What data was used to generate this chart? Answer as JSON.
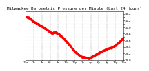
{
  "title": "Milwaukee Barometric Pressure per Minute (Last 24 Hours)",
  "title_fontsize": 4.2,
  "background_color": "#ffffff",
  "plot_bg_color": "#ffffff",
  "line_color": "#ff0000",
  "grid_color": "#888888",
  "ylim": [
    29.0,
    30.5
  ],
  "yticks": [
    29.0,
    29.1,
    29.2,
    29.3,
    29.4,
    29.5,
    29.6,
    29.7,
    29.8,
    29.9,
    30.0,
    30.1,
    30.2,
    30.3,
    30.4
  ],
  "ytick_labels": [
    "29.0",
    "",
    "29.2",
    "",
    "29.4",
    "",
    "29.6",
    "",
    "29.8",
    "",
    "30.0",
    "",
    "30.2",
    "",
    "30.4"
  ],
  "ytick_fontsize": 3.2,
  "xtick_fontsize": 2.8,
  "x_ctrl": [
    0,
    55,
    110,
    165,
    220,
    275,
    330,
    385,
    440,
    495,
    550,
    605,
    660,
    715,
    770,
    825,
    880,
    935,
    990,
    1045,
    1100,
    1155,
    1210,
    1265,
    1320,
    1375,
    1439
  ],
  "y_ctrl": [
    30.32,
    30.28,
    30.18,
    30.12,
    30.05,
    29.98,
    29.9,
    29.82,
    29.85,
    29.78,
    29.68,
    29.55,
    29.42,
    29.28,
    29.18,
    29.1,
    29.08,
    29.05,
    29.12,
    29.18,
    29.25,
    29.3,
    29.35,
    29.38,
    29.45,
    29.55,
    29.68
  ],
  "x_labels": [
    "12a",
    "2a",
    "4a",
    "6a",
    "8a",
    "10a",
    "12p",
    "2p",
    "4p",
    "6p",
    "8p",
    "10p",
    "12a"
  ],
  "marker": ".",
  "markersize": 0.9,
  "linewidth": 0.0,
  "linestyle": "None",
  "noise_std": 0.008,
  "noise_seed": 7
}
